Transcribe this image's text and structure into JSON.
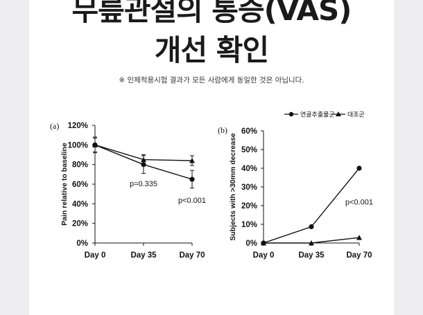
{
  "header": {
    "title_line1": "무릎관절의 통증(VAS)",
    "title_line2": "개선 확인",
    "note": "※ 인체적용시험 결과가 모든 사람에게 동일한 것은 아닙니다."
  },
  "chart_data": [
    {
      "type": "line",
      "panel": "(a)",
      "categories": [
        "Day 0",
        "Day 35",
        "Day 70"
      ],
      "ylabel": "Pain relative to baseline",
      "ylim": [
        0,
        120
      ],
      "yticks": [
        "0%",
        "20%",
        "40%",
        "60%",
        "80%",
        "100%",
        "120%"
      ],
      "series": [
        {
          "name": "연골추출물군",
          "marker": "circle",
          "values": [
            100,
            80,
            65
          ],
          "errors": [
            8,
            9,
            9
          ]
        },
        {
          "name": "대조군",
          "marker": "triangle",
          "values": [
            100,
            85,
            84
          ],
          "errors": [
            7,
            5,
            5
          ]
        }
      ],
      "annotations": [
        {
          "text": "p=0.335",
          "x": "Day 35",
          "y": 58
        },
        {
          "text": "p<0.001",
          "x": "Day 70",
          "y": 41
        }
      ]
    },
    {
      "type": "line",
      "panel": "(b)",
      "categories": [
        "Day 0",
        "Day 35",
        "Day 70"
      ],
      "ylabel": "Subjects with >30mm decrease",
      "ylim": [
        0,
        60
      ],
      "yticks": [
        "0%",
        "10%",
        "20%",
        "30%",
        "40%",
        "50%",
        "60%"
      ],
      "series": [
        {
          "name": "연골추출물군",
          "marker": "circle",
          "values": [
            0,
            8.7,
            40
          ]
        },
        {
          "name": "대조군",
          "marker": "triangle",
          "values": [
            0,
            0,
            2.9
          ]
        }
      ],
      "annotations": [
        {
          "text": "p<0.001",
          "x": "Day 70",
          "y": 20.5
        }
      ]
    }
  ],
  "legend": [
    {
      "label": "연골추출물군",
      "marker": "circle"
    },
    {
      "label": "대조군",
      "marker": "triangle"
    }
  ]
}
